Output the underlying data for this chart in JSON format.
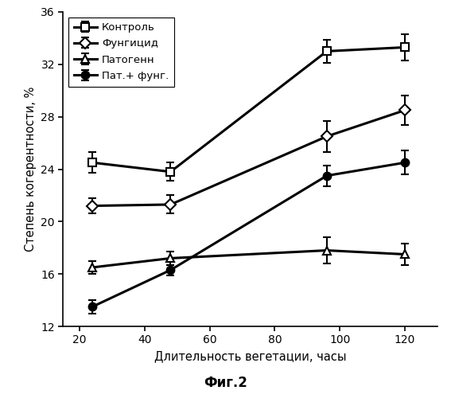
{
  "x": [
    24,
    48,
    96,
    120
  ],
  "series": [
    {
      "label": "Контроль",
      "y": [
        24.5,
        23.8,
        33.0,
        33.3
      ],
      "yerr": [
        0.8,
        0.7,
        0.9,
        1.0
      ],
      "marker": "s",
      "fillstyle": "none",
      "linewidth": 2.2
    },
    {
      "label": "Фунгицид",
      "y": [
        21.2,
        21.3,
        26.5,
        28.5
      ],
      "yerr": [
        0.6,
        0.7,
        1.2,
        1.1
      ],
      "marker": "D",
      "fillstyle": "none",
      "linewidth": 2.2
    },
    {
      "label": "Патогенн",
      "y": [
        16.5,
        17.2,
        17.8,
        17.5
      ],
      "yerr": [
        0.5,
        0.5,
        1.0,
        0.8
      ],
      "marker": "^",
      "fillstyle": "none",
      "linewidth": 2.2
    },
    {
      "label": "Пат.+ фунг.",
      "y": [
        13.5,
        16.3,
        23.5,
        24.5
      ],
      "yerr": [
        0.5,
        0.4,
        0.8,
        0.9
      ],
      "marker": "o",
      "fillstyle": "full",
      "linewidth": 2.2
    }
  ],
  "xlabel": "Длительность вегетации, часы",
  "ylabel": "Степень когерентности, %",
  "caption": "Фиг.2",
  "xlim": [
    15,
    130
  ],
  "ylim": [
    12,
    36
  ],
  "xticks": [
    20,
    40,
    60,
    80,
    100,
    120
  ],
  "yticks": [
    12,
    16,
    20,
    24,
    28,
    32,
    36
  ],
  "background_color": "#ffffff",
  "line_color": "#000000",
  "markersize": 7
}
